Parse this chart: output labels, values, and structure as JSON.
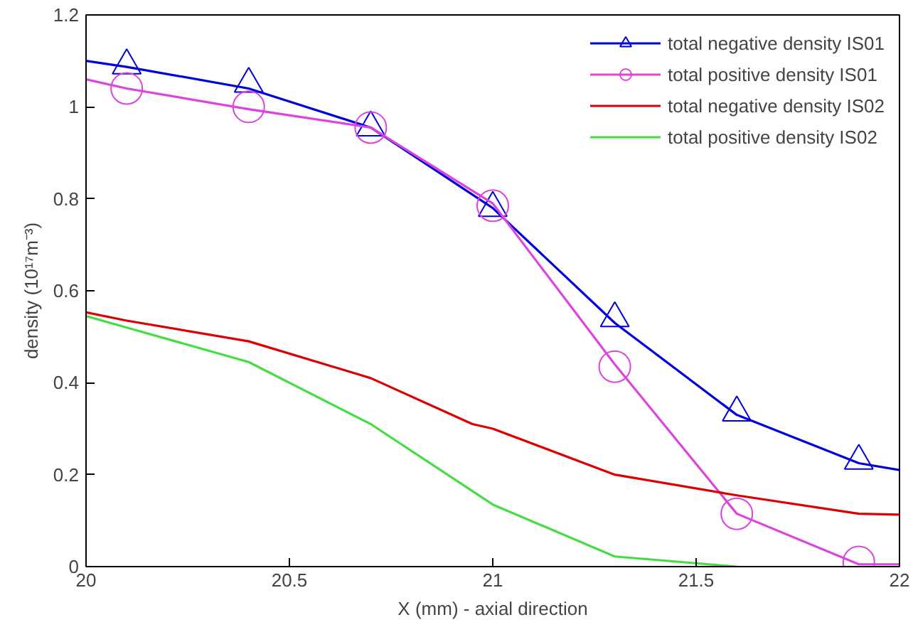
{
  "chart_data": {
    "type": "line",
    "xlabel": "X (mm) - axial direction",
    "ylabel": "density (10¹⁷m⁻³)",
    "xlim": [
      20,
      22
    ],
    "ylim": [
      0,
      1.2
    ],
    "xticks": [
      20,
      20.5,
      21,
      21.5,
      22
    ],
    "yticks": [
      0,
      0.2,
      0.4,
      0.6,
      0.8,
      1,
      1.2
    ],
    "grid": false,
    "legend": "top right",
    "series": [
      {
        "name": "total negative density IS01",
        "color": "#0000dd",
        "x": [
          20,
          20.1,
          20.4,
          20.7,
          21.0,
          21.3,
          21.6,
          21.9,
          22
        ],
        "values": [
          1.1,
          1.087,
          1.04,
          0.955,
          0.78,
          0.53,
          0.33,
          0.225,
          0.21
        ]
      },
      {
        "color": "#0000dd",
        "type": "scatter",
        "marker": "triangle",
        "x": [
          20.1,
          20.4,
          20.7,
          21.0,
          21.3,
          21.6,
          21.9
        ],
        "values": [
          1.09,
          1.05,
          0.955,
          0.78,
          0.54,
          0.335,
          0.23
        ]
      },
      {
        "name": "total positive density IS01",
        "color": "#dd44dd",
        "x": [
          20,
          20.1,
          20.4,
          20.7,
          21.0,
          21.3,
          21.6,
          21.9,
          22
        ],
        "values": [
          1.06,
          1.04,
          0.995,
          0.955,
          0.79,
          0.44,
          0.115,
          0.005,
          0.005
        ]
      },
      {
        "color": "#dd44dd",
        "type": "scatter",
        "marker": "circle",
        "x": [
          20.1,
          20.4,
          20.7,
          21.0,
          21.3,
          21.6,
          21.9
        ],
        "values": [
          1.04,
          1.0,
          0.955,
          0.785,
          0.435,
          0.115,
          0.01
        ]
      },
      {
        "name": "total negative density IS02",
        "color": "#dd0000",
        "x": [
          20,
          20.1,
          20.4,
          20.7,
          20.95,
          21.0,
          21.3,
          21.6,
          21.9,
          22
        ],
        "values": [
          0.553,
          0.535,
          0.49,
          0.41,
          0.31,
          0.3,
          0.2,
          0.155,
          0.115,
          0.113
        ]
      },
      {
        "name": "total positive density IS02",
        "color": "#44dd44",
        "x": [
          20,
          20.1,
          20.4,
          20.7,
          21.0,
          21.3,
          21.6
        ],
        "values": [
          0.545,
          0.52,
          0.445,
          0.31,
          0.135,
          0.022,
          0.0
        ]
      }
    ]
  }
}
